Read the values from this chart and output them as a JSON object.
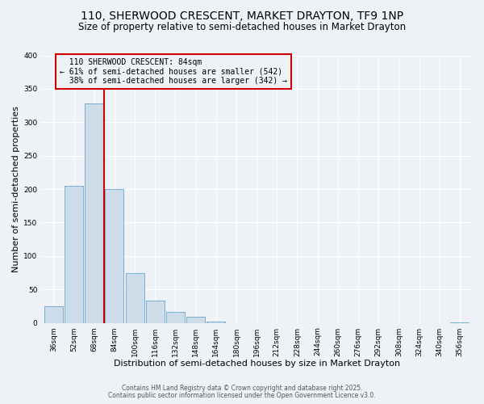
{
  "title": "110, SHERWOOD CRESCENT, MARKET DRAYTON, TF9 1NP",
  "subtitle": "Size of property relative to semi-detached houses in Market Drayton",
  "xlabel": "Distribution of semi-detached houses by size in Market Drayton",
  "ylabel": "Number of semi-detached properties",
  "bar_labels": [
    "36sqm",
    "52sqm",
    "68sqm",
    "84sqm",
    "100sqm",
    "116sqm",
    "132sqm",
    "148sqm",
    "164sqm",
    "180sqm",
    "196sqm",
    "212sqm",
    "228sqm",
    "244sqm",
    "260sqm",
    "276sqm",
    "292sqm",
    "308sqm",
    "324sqm",
    "340sqm",
    "356sqm"
  ],
  "bar_values": [
    25,
    205,
    328,
    200,
    75,
    33,
    16,
    9,
    2,
    0,
    0,
    0,
    0,
    0,
    0,
    0,
    0,
    0,
    0,
    0,
    1
  ],
  "bar_color": "#ccdce8",
  "bar_edge_color": "#7aaed0",
  "marker_label": "110 SHERWOOD CRESCENT: 84sqm",
  "marker_smaller_pct": "61%",
  "marker_smaller_n": 542,
  "marker_larger_pct": "38%",
  "marker_larger_n": 342,
  "marker_color": "#cc0000",
  "ylim": [
    0,
    400
  ],
  "yticks": [
    0,
    50,
    100,
    150,
    200,
    250,
    300,
    350,
    400
  ],
  "annotation_box_color": "#cc0000",
  "bg_color": "#eef2f7",
  "footer_line1": "Contains HM Land Registry data © Crown copyright and database right 2025.",
  "footer_line2": "Contains public sector information licensed under the Open Government Licence v3.0.",
  "title_fontsize": 10,
  "subtitle_fontsize": 8.5,
  "axis_label_fontsize": 8,
  "tick_fontsize": 6.5,
  "annotation_fontsize": 7,
  "footer_fontsize": 5.5
}
